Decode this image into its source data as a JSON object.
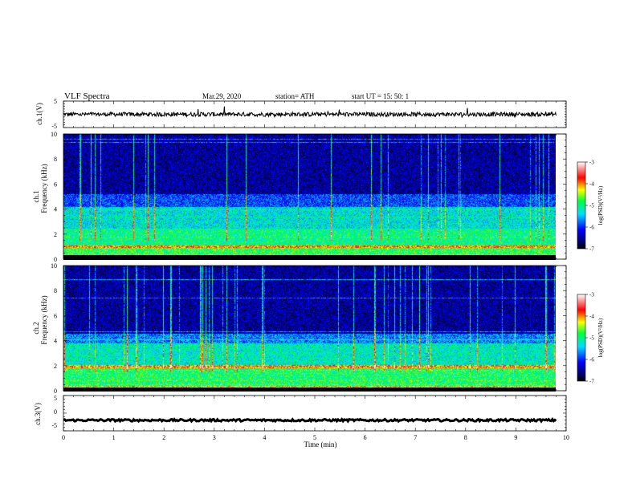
{
  "header": {
    "title": "VLF Spectra",
    "date": "Mar.29, 2020",
    "station": "station= ATH",
    "start": "start  UT  =    15: 50: 1"
  },
  "chart_data": [
    {
      "type": "line",
      "id": "ch1",
      "ylabel": "ch.1(V)",
      "ylim": [
        -5,
        5
      ],
      "yticks": [
        5,
        -5
      ],
      "x": "time (min)",
      "xlim": [
        0,
        10
      ],
      "trace": {
        "mean": 0,
        "amplitude_approx": 0.8,
        "x_end": 9.8,
        "color": "#000000"
      }
    },
    {
      "type": "heatmap",
      "id": "ch1-spectrogram",
      "ylabel_top": "ch.1",
      "ylabel": "Frequency  (kHz)",
      "ylim": [
        0,
        10
      ],
      "yticks": [
        0,
        2,
        4,
        6,
        8,
        10
      ],
      "xlim": [
        0,
        10
      ],
      "x_end": 9.8,
      "colorbar": {
        "label": "log(PSD)(V²/Hz)",
        "ticks": [
          -3,
          -4,
          -5,
          -6,
          -7
        ],
        "range": [
          -7,
          -3
        ]
      },
      "bands_log_psd": [
        {
          "from_khz": 0.0,
          "to_khz": 0.3,
          "value": -3.8
        },
        {
          "from_khz": 0.3,
          "to_khz": 0.9,
          "value": -4.8
        },
        {
          "from_khz": 0.9,
          "to_khz": 1.1,
          "value": -4.0
        },
        {
          "from_khz": 1.1,
          "to_khz": 2.5,
          "value": -5.0
        },
        {
          "from_khz": 2.5,
          "to_khz": 4.2,
          "value": -5.3
        },
        {
          "from_khz": 4.2,
          "to_khz": 5.2,
          "value": -5.9
        },
        {
          "from_khz": 5.2,
          "to_khz": 10.0,
          "value": -6.5
        }
      ]
    },
    {
      "type": "heatmap",
      "id": "ch2-spectrogram",
      "ylabel_top": "ch.2",
      "ylabel": "Frequency  (kHz)",
      "ylim": [
        0,
        10
      ],
      "yticks": [
        0,
        2,
        4,
        6,
        8,
        10
      ],
      "xlim": [
        0,
        10
      ],
      "x_end": 9.8,
      "colorbar": {
        "label": "log(PSD)(V²/Hz)",
        "ticks": [
          -3,
          -4,
          -5,
          -6,
          -7
        ],
        "range": [
          -7,
          -3
        ]
      },
      "bands_log_psd": [
        {
          "from_khz": 0.0,
          "to_khz": 0.4,
          "value": -4.2
        },
        {
          "from_khz": 0.4,
          "to_khz": 1.8,
          "value": -4.9
        },
        {
          "from_khz": 1.8,
          "to_khz": 2.1,
          "value": -4.1
        },
        {
          "from_khz": 2.1,
          "to_khz": 3.8,
          "value": -5.2
        },
        {
          "from_khz": 3.8,
          "to_khz": 4.6,
          "value": -5.7
        },
        {
          "from_khz": 4.6,
          "to_khz": 10.0,
          "value": -6.5
        }
      ]
    },
    {
      "type": "line",
      "id": "ch3",
      "ylabel": "ch.3(V)",
      "ylim": [
        -5,
        5
      ],
      "yticks": [
        5,
        0,
        -5
      ],
      "xlim": [
        0,
        10
      ],
      "xlabel": "Time  (min)",
      "xticks": [
        0,
        1,
        2,
        3,
        4,
        5,
        6,
        7,
        8,
        9,
        10
      ],
      "trace": {
        "mean": -2,
        "amplitude_approx": 0.3,
        "x_end": 9.8,
        "color": "#000000"
      }
    }
  ],
  "colors": {
    "colormap": [
      "#000000",
      "#000080",
      "#0000ff",
      "#00ffff",
      "#00ff00",
      "#ffff00",
      "#ff0000",
      "#ffffff"
    ]
  }
}
